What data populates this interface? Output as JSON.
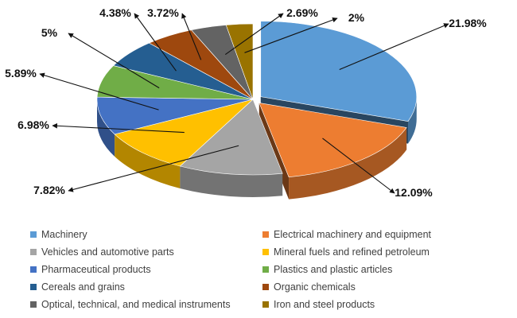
{
  "chart_data": {
    "type": "pie",
    "title": "",
    "categories": [
      "Machinery",
      "Electrical machinery and equipment",
      "Vehicles and automotive parts",
      "Mineral fuels and refined petroleum",
      "Pharmaceutical products",
      "Plastics and plastic articles",
      "Cereals and grains",
      "Organic chemicals",
      "Optical, technical, and medical instruments",
      "Iron and steel products"
    ],
    "values": [
      21.98,
      12.09,
      7.82,
      6.98,
      5.89,
      5,
      4.38,
      3.72,
      2.69,
      2
    ],
    "labels": [
      "21.98%",
      "12.09%",
      "7.82%",
      "6.98%",
      "5.89%",
      "5%",
      "4.38%",
      "3.72%",
      "2.69%",
      "2%"
    ],
    "colors": [
      "#5B9BD5",
      "#ED7D31",
      "#A5A5A5",
      "#FFC000",
      "#4472C4",
      "#70AD47",
      "#255E91",
      "#9E480E",
      "#636363",
      "#997300"
    ],
    "legend_position": "bottom",
    "exploded_slices": [
      "Machinery",
      "Electrical machinery and equipment"
    ]
  }
}
